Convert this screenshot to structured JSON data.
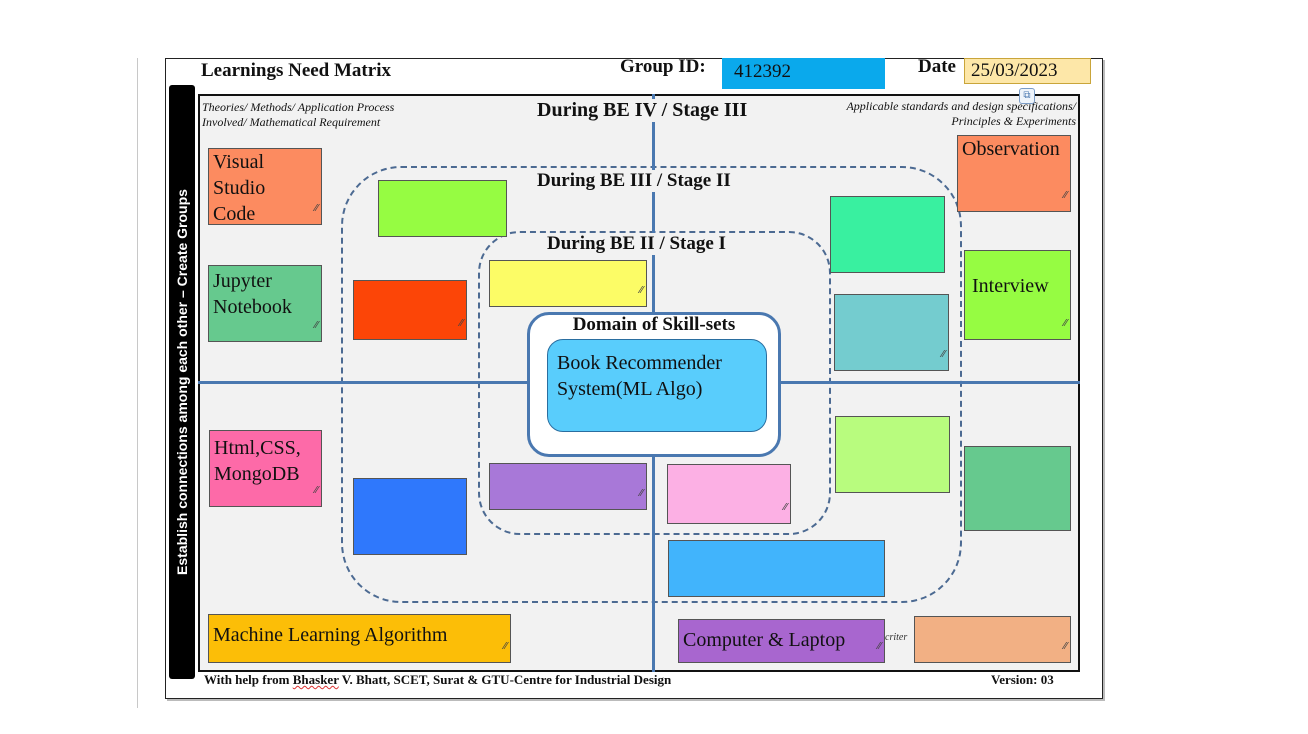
{
  "header": {
    "title": "Learnings Need Matrix",
    "group_id_label": "Group ID:",
    "group_id_value": "412392",
    "date_label": "Date",
    "date_value": "25/03/2023"
  },
  "side_label": "Establish connections among each other – Create Groups",
  "corner_notes": {
    "top_left_line1": "Theories/ Methods/ Application Process",
    "top_left_line2": "Involved/ Mathematical Requirement",
    "top_right_line1": "Applicable standards and design specifications/",
    "top_right_line2": "Principles & Experiments",
    "bottom_right_fragment": "criter"
  },
  "stages": {
    "stage3": "During BE IV / Stage III",
    "stage2": "During BE III / Stage II",
    "stage1": "During BE II / Stage I"
  },
  "domain": {
    "title": "Domain of Skill-sets",
    "line1": "Book Recommender",
    "line2": "System(ML Algo)"
  },
  "notes": {
    "vscode": [
      "Visual",
      "Studio",
      "Code"
    ],
    "jupyter": [
      "Jupyter",
      "Notebook"
    ],
    "html": [
      "Html,CSS,",
      "MongoDB"
    ],
    "ml": "Machine Learning Algorithm",
    "computer": "Computer & Laptop",
    "observation": "Observation",
    "interview": "Interview"
  },
  "colors": {
    "vscode": "#fc8b60",
    "jupyter": "#66c98e",
    "html": "#fd6aa8",
    "ml": "#fcbe07",
    "computer": "#a866cf",
    "observation": "#fc8b60",
    "interview": "#96fc42",
    "green_top": "#96fc42",
    "red_left": "#fc4507",
    "blue_left": "#2f78fc",
    "yellow_mid": "#fcfc66",
    "purple_mid": "#a878d8",
    "pink_mid": "#fcb0e4",
    "sky_bottom": "#41b4fc",
    "teal_right": "#39f0a0",
    "cyan_right": "#74cccf",
    "lime_right": "#b8fc7e",
    "green_far_right": "#66c98e",
    "peach_bottom_right": "#f2b084",
    "group_box": "#0aa9ec",
    "date_box": "#fde7a8",
    "domain_inner": "#59cdfc",
    "grid_line": "#4a78b0"
  },
  "footer": {
    "left_prefix": "With help from ",
    "left_name": "Bhasker",
    "left_suffix": " V. Bhatt, SCET, Surat & GTU-Centre for Industrial Design",
    "version": "Version: 03"
  }
}
